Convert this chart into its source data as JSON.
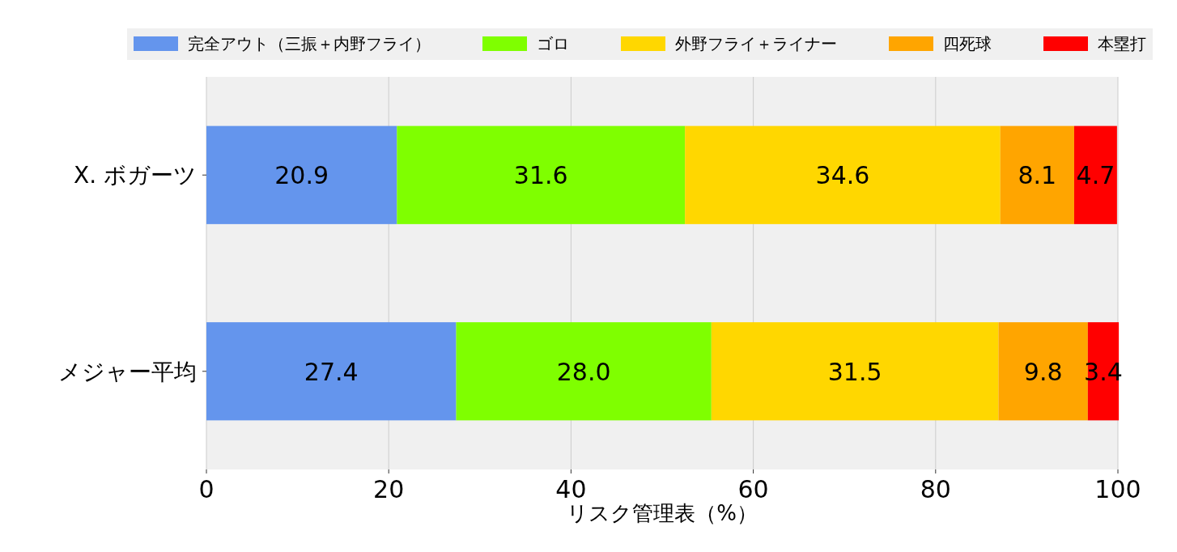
{
  "chart_data": {
    "type": "bar",
    "orientation": "horizontal",
    "stacked": true,
    "categories": [
      "X. ボガーツ",
      "メジャー平均"
    ],
    "series": [
      {
        "name": "完全アウト（三振＋内野フライ）",
        "color": "#6495ed",
        "values": [
          20.9,
          27.4
        ],
        "value_labels": [
          "20.9",
          "27.4"
        ]
      },
      {
        "name": "ゴロ",
        "color": "#7fff00",
        "values": [
          31.6,
          28.0
        ],
        "value_labels": [
          "31.6",
          "28.0"
        ]
      },
      {
        "name": "外野フライ＋ライナー",
        "color": "#ffd700",
        "values": [
          34.6,
          31.5
        ],
        "value_labels": [
          "34.6",
          "31.5"
        ]
      },
      {
        "name": "四死球",
        "color": "#ffa500",
        "values": [
          8.1,
          9.8
        ],
        "value_labels": [
          "8.1",
          "9.8"
        ]
      },
      {
        "name": "本塁打",
        "color": "#ff0000",
        "values": [
          4.7,
          3.4
        ],
        "value_labels": [
          "4.7",
          "3.4"
        ]
      }
    ],
    "xlabel": "リスク管理表（%）",
    "xlim": [
      0,
      100
    ],
    "xticks": [
      0,
      20,
      40,
      60,
      80,
      100
    ],
    "grid": "x",
    "legend": "top"
  }
}
